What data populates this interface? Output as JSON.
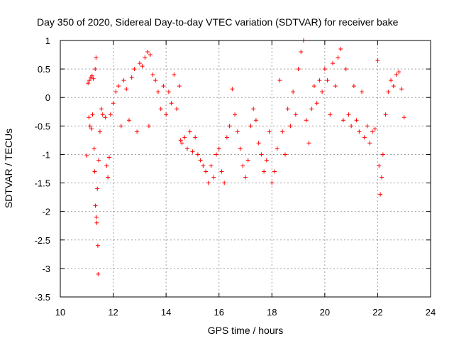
{
  "chart_data": {
    "type": "scatter",
    "title": "Day 350 of 2020, Sidereal Day-to-day VTEC variation (SDTVAR) for receiver bake",
    "xlabel": "GPS time / hours",
    "ylabel": "SDTVAR / TECUs",
    "xlim": [
      10,
      24
    ],
    "ylim": [
      -3.5,
      1
    ],
    "grid": true,
    "marker": "+",
    "marker_color": "#ff0000",
    "x_ticks": [
      "10",
      "12",
      "14",
      "16",
      "18",
      "20",
      "22",
      "24"
    ],
    "y_ticks": [
      "1",
      "0.5",
      "0",
      "-0.5",
      "-1",
      "-1.5",
      "-2",
      "-2.5",
      "-3",
      "-3.5"
    ],
    "series": [
      {
        "name": "SDTVAR",
        "points": [
          [
            11.0,
            -1.02
          ],
          [
            11.05,
            0.25
          ],
          [
            11.08,
            -0.35
          ],
          [
            11.1,
            0.3
          ],
          [
            11.12,
            -0.5
          ],
          [
            11.15,
            0.35
          ],
          [
            11.18,
            -0.55
          ],
          [
            11.2,
            0.38
          ],
          [
            11.22,
            -0.3
          ],
          [
            11.25,
            0.33
          ],
          [
            11.28,
            -0.9
          ],
          [
            11.3,
            -1.3
          ],
          [
            11.32,
            0.5
          ],
          [
            11.33,
            -1.9
          ],
          [
            11.35,
            0.7
          ],
          [
            11.36,
            -2.1
          ],
          [
            11.38,
            -2.2
          ],
          [
            11.4,
            -1.6
          ],
          [
            11.42,
            -2.6
          ],
          [
            11.43,
            -3.1
          ],
          [
            11.45,
            -1.1
          ],
          [
            11.5,
            -0.6
          ],
          [
            11.55,
            -0.2
          ],
          [
            11.6,
            -0.3
          ],
          [
            11.7,
            -0.35
          ],
          [
            11.75,
            -1.2
          ],
          [
            11.8,
            -1.4
          ],
          [
            11.85,
            -1.05
          ],
          [
            11.9,
            -0.3
          ],
          [
            12.0,
            -0.1
          ],
          [
            12.1,
            0.1
          ],
          [
            12.2,
            0.2
          ],
          [
            12.3,
            -0.5
          ],
          [
            12.4,
            0.3
          ],
          [
            12.5,
            0.15
          ],
          [
            12.6,
            -0.4
          ],
          [
            12.7,
            0.35
          ],
          [
            12.8,
            0.5
          ],
          [
            12.9,
            -0.6
          ],
          [
            13.0,
            0.6
          ],
          [
            13.1,
            0.55
          ],
          [
            13.2,
            0.7
          ],
          [
            13.3,
            0.8
          ],
          [
            13.35,
            -0.5
          ],
          [
            13.4,
            0.75
          ],
          [
            13.5,
            0.4
          ],
          [
            13.6,
            0.3
          ],
          [
            13.7,
            0.1
          ],
          [
            13.8,
            -0.2
          ],
          [
            13.9,
            0.2
          ],
          [
            14.0,
            -0.3
          ],
          [
            14.1,
            0.1
          ],
          [
            14.2,
            -0.1
          ],
          [
            14.3,
            0.4
          ],
          [
            14.4,
            -0.2
          ],
          [
            14.5,
            0.2
          ],
          [
            14.55,
            -0.75
          ],
          [
            14.6,
            -0.8
          ],
          [
            14.7,
            -0.7
          ],
          [
            14.8,
            -0.9
          ],
          [
            14.9,
            -0.6
          ],
          [
            15.0,
            -0.95
          ],
          [
            15.1,
            -0.7
          ],
          [
            15.2,
            -1.0
          ],
          [
            15.3,
            -1.1
          ],
          [
            15.4,
            -1.2
          ],
          [
            15.5,
            -1.3
          ],
          [
            15.6,
            -1.5
          ],
          [
            15.7,
            -1.2
          ],
          [
            15.8,
            -1.4
          ],
          [
            15.9,
            -1.0
          ],
          [
            16.0,
            -0.9
          ],
          [
            16.1,
            -1.3
          ],
          [
            16.2,
            -1.5
          ],
          [
            16.3,
            -0.7
          ],
          [
            16.4,
            -0.5
          ],
          [
            16.5,
            0.15
          ],
          [
            16.6,
            -0.3
          ],
          [
            16.7,
            -0.6
          ],
          [
            16.8,
            -0.9
          ],
          [
            16.9,
            -1.2
          ],
          [
            17.0,
            -1.4
          ],
          [
            17.1,
            -1.1
          ],
          [
            17.2,
            -0.5
          ],
          [
            17.3,
            -0.2
          ],
          [
            17.4,
            -0.4
          ],
          [
            17.5,
            -0.8
          ],
          [
            17.6,
            -1.0
          ],
          [
            17.7,
            -1.3
          ],
          [
            17.8,
            -1.1
          ],
          [
            17.9,
            -0.6
          ],
          [
            18.0,
            -1.5
          ],
          [
            18.1,
            -1.3
          ],
          [
            18.2,
            -0.9
          ],
          [
            18.3,
            0.3
          ],
          [
            18.4,
            -0.6
          ],
          [
            18.5,
            -1.0
          ],
          [
            18.6,
            -0.2
          ],
          [
            18.7,
            -0.5
          ],
          [
            18.8,
            0.1
          ],
          [
            18.9,
            -0.3
          ],
          [
            19.0,
            0.5
          ],
          [
            19.1,
            0.8
          ],
          [
            19.2,
            1.0
          ],
          [
            19.3,
            -0.4
          ],
          [
            19.4,
            -0.8
          ],
          [
            19.5,
            -0.2
          ],
          [
            19.6,
            0.2
          ],
          [
            19.7,
            -0.1
          ],
          [
            19.8,
            0.3
          ],
          [
            19.9,
            0.1
          ],
          [
            20.0,
            0.5
          ],
          [
            20.1,
            0.3
          ],
          [
            20.2,
            -0.3
          ],
          [
            20.3,
            0.6
          ],
          [
            20.4,
            0.2
          ],
          [
            20.5,
            0.7
          ],
          [
            20.6,
            0.85
          ],
          [
            20.7,
            -0.4
          ],
          [
            20.8,
            0.5
          ],
          [
            20.9,
            -0.3
          ],
          [
            21.0,
            -0.5
          ],
          [
            21.1,
            0.2
          ],
          [
            21.2,
            -0.4
          ],
          [
            21.3,
            -0.6
          ],
          [
            21.4,
            0.1
          ],
          [
            21.5,
            -0.7
          ],
          [
            21.6,
            -0.5
          ],
          [
            21.7,
            -0.8
          ],
          [
            21.8,
            -0.6
          ],
          [
            21.9,
            -0.55
          ],
          [
            22.0,
            0.65
          ],
          [
            22.05,
            -1.2
          ],
          [
            22.1,
            -1.7
          ],
          [
            22.15,
            -1.4
          ],
          [
            22.2,
            -1.0
          ],
          [
            22.3,
            -0.3
          ],
          [
            22.4,
            0.1
          ],
          [
            22.5,
            0.3
          ],
          [
            22.6,
            0.2
          ],
          [
            22.7,
            0.4
          ],
          [
            22.8,
            0.45
          ],
          [
            22.9,
            0.15
          ],
          [
            23.0,
            -0.35
          ]
        ]
      }
    ]
  }
}
